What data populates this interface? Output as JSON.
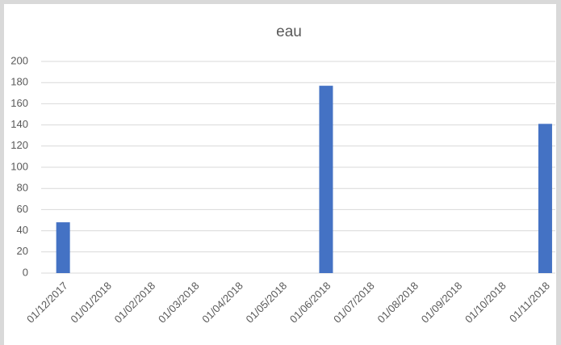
{
  "chart_data": {
    "type": "bar",
    "title": "eau",
    "categories": [
      "01/12/2017",
      "01/01/2018",
      "01/02/2018",
      "01/03/2018",
      "01/04/2018",
      "01/05/2018",
      "01/06/2018",
      "01/07/2018",
      "01/08/2018",
      "01/09/2018",
      "01/10/2018",
      "01/11/2018"
    ],
    "values": [
      48,
      0,
      0,
      0,
      0,
      0,
      177,
      0,
      0,
      0,
      0,
      141
    ],
    "color": "#4472c4",
    "ylim": [
      0,
      200
    ],
    "yticks": [
      0,
      20,
      40,
      60,
      80,
      100,
      120,
      140,
      160,
      180,
      200
    ],
    "grid": true
  }
}
